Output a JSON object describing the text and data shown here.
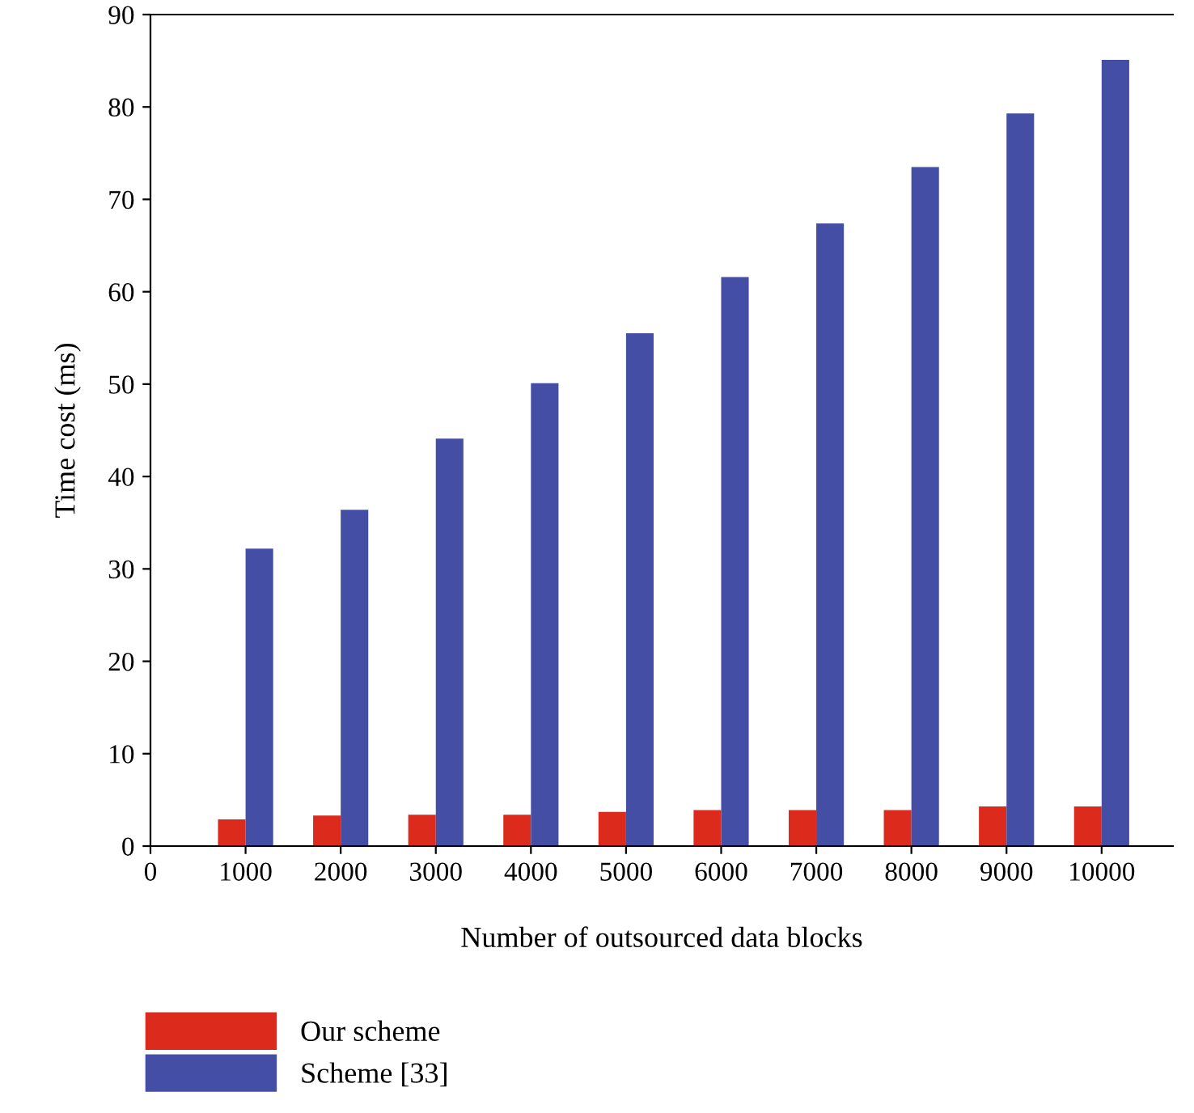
{
  "chart_data": {
    "type": "bar",
    "xlabel": "Number of outsourced data blocks",
    "ylabel": "Time cost (ms)",
    "x": [
      1000,
      2000,
      3000,
      4000,
      5000,
      6000,
      7000,
      8000,
      9000,
      10000
    ],
    "series": [
      {
        "name": "Our scheme",
        "color": "#dc2a1c",
        "values": [
          2.9,
          3.3,
          3.4,
          3.4,
          3.7,
          3.9,
          3.9,
          3.9,
          4.3,
          4.3
        ]
      },
      {
        "name": "Scheme [33]",
        "color": "#444ea5",
        "values": [
          32.2,
          36.4,
          44.1,
          50.1,
          55.5,
          61.6,
          67.4,
          73.5,
          79.3,
          85.1
        ]
      }
    ],
    "xlim": [
      0,
      10750
    ],
    "xticks": [
      0,
      1000,
      2000,
      3000,
      4000,
      5000,
      6000,
      7000,
      8000,
      9000,
      10000
    ],
    "ylim": [
      0,
      90
    ],
    "yticks": [
      0,
      10,
      20,
      30,
      40,
      50,
      60,
      70,
      80,
      90
    ],
    "grid": false,
    "legend": "bottom left"
  }
}
